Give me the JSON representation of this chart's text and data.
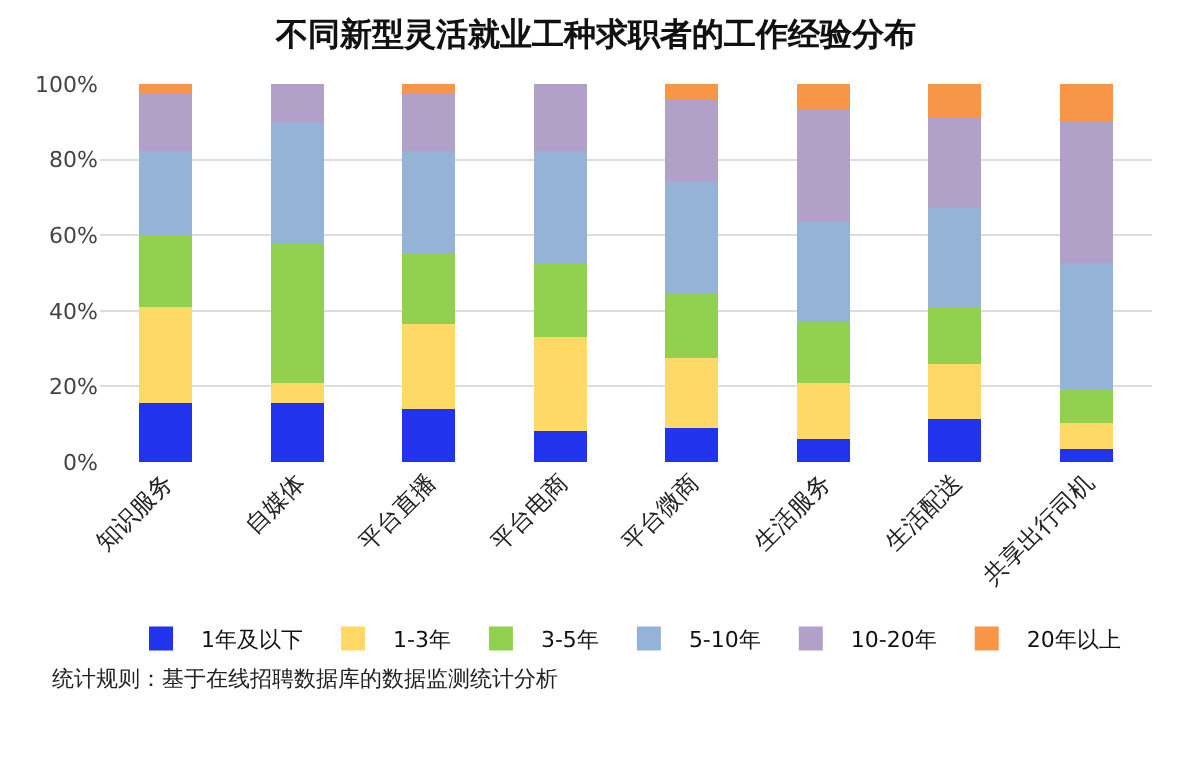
{
  "chart_data": {
    "type": "bar",
    "title": "不同新型灵活就业工种求职者的工作经验分布",
    "categories": [
      "知识服务",
      "自媒体",
      "平台直播",
      "平台电商",
      "平台微商",
      "生活服务",
      "生活配送",
      "共享出行司机"
    ],
    "stacked": true,
    "series": [
      {
        "name": "1年及以下",
        "color": "#2233ee",
        "values": [
          15.6,
          15.6,
          13.9,
          8.2,
          8.9,
          6.1,
          11.3,
          3.5
        ]
      },
      {
        "name": "1-3年",
        "color": "#ffd966",
        "values": [
          25.5,
          5.4,
          22.7,
          24.9,
          18.6,
          14.9,
          14.7,
          6.7
        ]
      },
      {
        "name": "3-5年",
        "color": "#92d050",
        "values": [
          18.6,
          37.0,
          18.8,
          19.3,
          16.9,
          16.0,
          14.7,
          9.1
        ]
      },
      {
        "name": "5-10年",
        "color": "#95b3d7",
        "values": [
          22.6,
          31.8,
          26.9,
          29.9,
          29.8,
          26.4,
          26.4,
          33.3
        ]
      },
      {
        "name": "10-20年",
        "color": "#b1a0c7",
        "values": [
          15.3,
          10.2,
          15.3,
          17.7,
          21.7,
          29.9,
          24.2,
          37.7
        ]
      },
      {
        "name": "20年以上",
        "color": "#f79646",
        "values": [
          2.4,
          0,
          2.4,
          0,
          4.1,
          6.7,
          8.7,
          9.7
        ]
      }
    ],
    "ylim": [
      0,
      100
    ],
    "yticks": [
      {
        "value": 0,
        "label": "0%"
      },
      {
        "value": 20,
        "label": "20%"
      },
      {
        "value": 40,
        "label": "40%"
      },
      {
        "value": 60,
        "label": "60%"
      },
      {
        "value": 80,
        "label": "80%"
      },
      {
        "value": 100,
        "label": "100%"
      }
    ],
    "grid": "y",
    "legend": "bottom",
    "annotations": [
      "统计规则：基于在线招聘数据库的数据监测统计分析"
    ]
  }
}
